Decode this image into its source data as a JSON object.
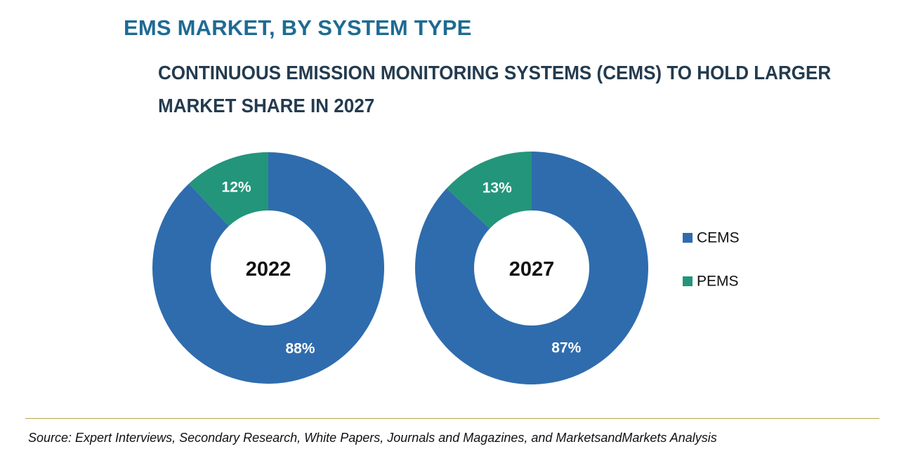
{
  "title": "EMS MARKET, BY SYSTEM TYPE",
  "subtitle": {
    "line1": "CONTINUOUS EMISSION MONITORING SYSTEMS (CEMS) TO HOLD LARGER",
    "line2": "MARKET SHARE IN 2027"
  },
  "source": "Source: Expert Interviews, Secondary Research, White Papers, Journals and Magazines, and MarketsandMarkets Analysis",
  "colors": {
    "title": "#1e6b93",
    "CEMS": "#2f6cad",
    "PEMS": "#23957a",
    "divider": "#b9a24a"
  },
  "chart_data": {
    "type": "pie",
    "variant": "donut",
    "title": "EMS MARKET, BY SYSTEM TYPE",
    "legend": [
      "CEMS",
      "PEMS"
    ],
    "legend_position": "right",
    "charts": [
      {
        "center_label": "2022",
        "slices": [
          {
            "name": "CEMS",
            "value": 88,
            "label": "88%"
          },
          {
            "name": "PEMS",
            "value": 12,
            "label": "12%"
          }
        ]
      },
      {
        "center_label": "2027",
        "slices": [
          {
            "name": "CEMS",
            "value": 87,
            "label": "87%"
          },
          {
            "name": "PEMS",
            "value": 13,
            "label": "13%"
          }
        ]
      }
    ]
  }
}
